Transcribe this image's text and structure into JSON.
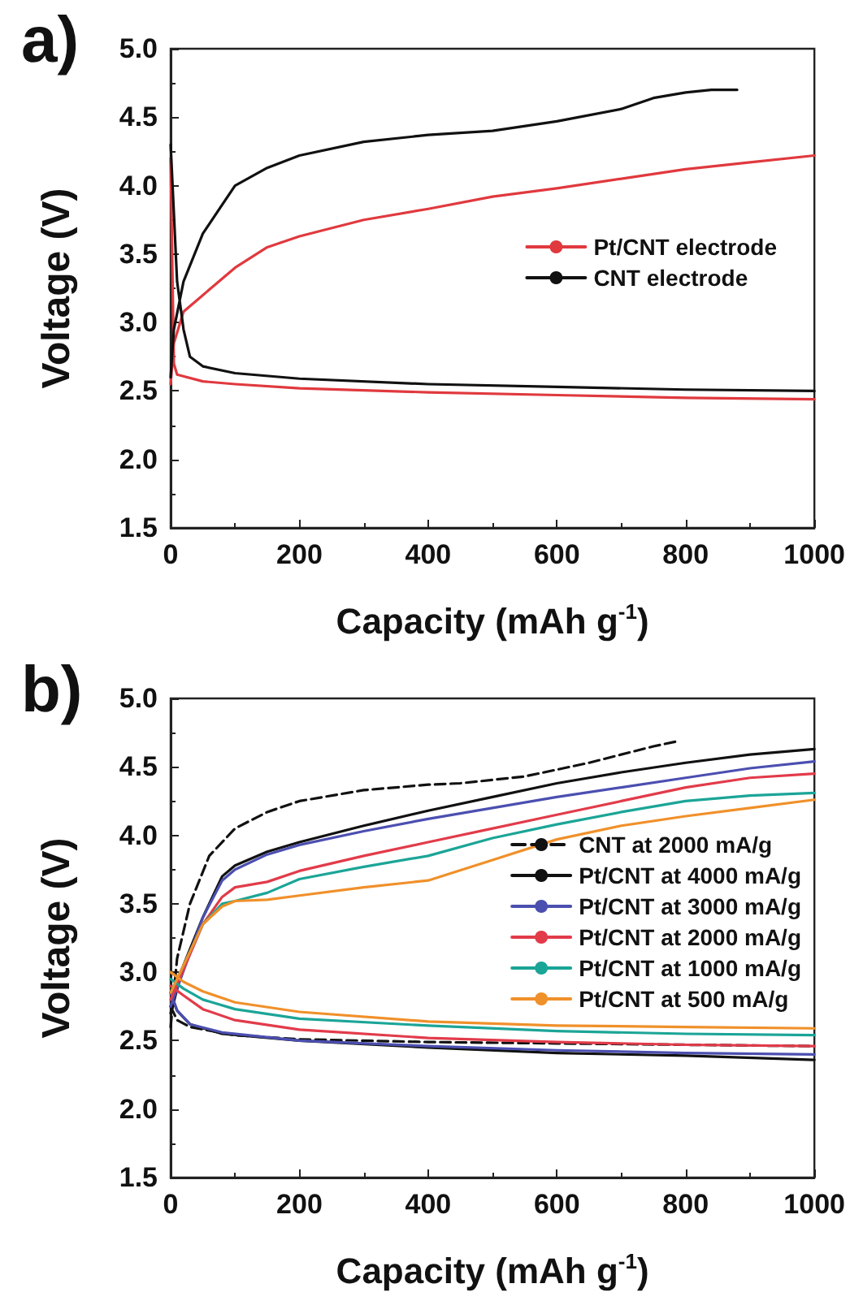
{
  "chart_data": [
    {
      "type": "line",
      "title": "a)",
      "xlabel": "Capacity (mAh g$^{-1}$)",
      "ylabel": "Voltage (V)",
      "xlim": [
        0,
        1000
      ],
      "xticks": [
        0,
        200,
        400,
        600,
        800,
        1000
      ],
      "ylim": [
        1.5,
        5.0
      ],
      "yticks": [
        {
          "value": 1.5,
          "label": "1.5"
        },
        {
          "value": 2,
          "label": "2.0"
        },
        {
          "value": 2.5,
          "label": "2.5"
        },
        {
          "value": 3,
          "label": "3.0"
        },
        {
          "value": 3.5,
          "label": "3.5"
        },
        {
          "value": 4,
          "label": "4.0"
        },
        {
          "value": 4.5,
          "label": "4.5"
        },
        {
          "value": 5,
          "label": "5.0"
        }
      ],
      "grid": false,
      "legend": "right",
      "marker": "none",
      "line_style": "solid",
      "series": [
        {
          "name": "Pt/CNT electrode",
          "color": "#e0393e",
          "x": [
            0,
            3,
            5,
            10,
            50,
            100,
            200,
            400,
            600,
            800,
            1000,
            null,
            0,
            5,
            20,
            50,
            100,
            150,
            200,
            300,
            400,
            500,
            600,
            700,
            800,
            900,
            1000
          ],
          "values": [
            4.2,
            3.3,
            2.7,
            2.62,
            2.57,
            2.55,
            2.52,
            2.49,
            2.47,
            2.45,
            2.44,
            null,
            2.55,
            2.85,
            3.08,
            3.2,
            3.4,
            3.55,
            3.63,
            3.75,
            3.83,
            3.92,
            3.98,
            4.05,
            4.12,
            4.17,
            4.22
          ]
        },
        {
          "name": "CNT electrode",
          "color": "#111111",
          "x": [
            0,
            5,
            10,
            20,
            30,
            50,
            100,
            200,
            400,
            600,
            800,
            1000,
            null,
            0,
            5,
            20,
            50,
            100,
            150,
            200,
            300,
            400,
            500,
            600,
            700,
            750,
            800,
            840,
            880
          ],
          "values": [
            4.3,
            3.8,
            3.3,
            2.95,
            2.75,
            2.68,
            2.63,
            2.59,
            2.55,
            2.53,
            2.51,
            2.5,
            null,
            2.6,
            2.95,
            3.3,
            3.65,
            4.0,
            4.13,
            4.22,
            4.32,
            4.37,
            4.4,
            4.47,
            4.56,
            4.64,
            4.68,
            4.7,
            4.7
          ]
        }
      ]
    },
    {
      "type": "line",
      "title": "b)",
      "xlabel": "Capacity (mAh g$^{-1}$)",
      "ylabel": "Voltage (V)",
      "xlim": [
        0,
        1000
      ],
      "xticks": [
        0,
        200,
        400,
        600,
        800,
        1000
      ],
      "ylim": [
        1.5,
        5.0
      ],
      "yticks": [
        {
          "value": 1.5,
          "label": "1.5"
        },
        {
          "value": 2,
          "label": "2.0"
        },
        {
          "value": 2.5,
          "label": "2.5"
        },
        {
          "value": 3,
          "label": "3.0"
        },
        {
          "value": 3.5,
          "label": "3.5"
        },
        {
          "value": 4,
          "label": "4.0"
        },
        {
          "value": 4.5,
          "label": "4.5"
        },
        {
          "value": 5,
          "label": "5.0"
        }
      ],
      "grid": false,
      "legend": "right",
      "marker": "none",
      "series": [
        {
          "name": "CNT at 2000 mA/g",
          "color": "#111111",
          "line_style": "dashed",
          "x": [
            0,
            10,
            30,
            100,
            200,
            400,
            600,
            800,
            1000,
            null,
            0,
            10,
            30,
            60,
            100,
            150,
            200,
            300,
            400,
            450,
            550,
            650,
            750,
            790
          ],
          "values": [
            2.75,
            2.65,
            2.6,
            2.54,
            2.51,
            2.49,
            2.48,
            2.47,
            2.46,
            null,
            2.6,
            3.1,
            3.5,
            3.85,
            4.05,
            4.17,
            4.25,
            4.33,
            4.37,
            4.38,
            4.43,
            4.53,
            4.65,
            4.69
          ]
        },
        {
          "name": "Pt/CNT at 4000 mA/g",
          "color": "#111111",
          "line_style": "solid",
          "x": [
            0,
            10,
            30,
            80,
            200,
            400,
            600,
            800,
            1000,
            null,
            0,
            20,
            50,
            80,
            100,
            150,
            200,
            300,
            400,
            500,
            600,
            700,
            800,
            900,
            1000
          ],
          "values": [
            2.85,
            2.72,
            2.62,
            2.55,
            2.5,
            2.45,
            2.41,
            2.39,
            2.36,
            null,
            2.7,
            3.05,
            3.4,
            3.7,
            3.78,
            3.88,
            3.95,
            4.07,
            4.18,
            4.28,
            4.38,
            4.46,
            4.53,
            4.59,
            4.63
          ]
        },
        {
          "name": "Pt/CNT at 3000 mA/g",
          "color": "#4b4fb0",
          "line_style": "solid",
          "x": [
            0,
            10,
            30,
            80,
            200,
            400,
            600,
            800,
            1000,
            null,
            0,
            50,
            80,
            100,
            150,
            200,
            300,
            400,
            500,
            600,
            700,
            800,
            900,
            1000
          ],
          "values": [
            2.85,
            2.72,
            2.62,
            2.56,
            2.5,
            2.46,
            2.43,
            2.41,
            2.4,
            null,
            2.75,
            3.4,
            3.67,
            3.75,
            3.86,
            3.93,
            4.03,
            4.12,
            4.2,
            4.28,
            4.35,
            4.42,
            4.49,
            4.54
          ]
        },
        {
          "name": "Pt/CNT at 2000 mA/g",
          "color": "#e23b4a",
          "line_style": "solid",
          "x": [
            0,
            20,
            50,
            100,
            200,
            400,
            600,
            800,
            1000,
            null,
            0,
            50,
            80,
            100,
            150,
            200,
            300,
            400,
            500,
            600,
            700,
            800,
            900,
            1000
          ],
          "values": [
            2.9,
            2.83,
            2.73,
            2.65,
            2.58,
            2.52,
            2.49,
            2.47,
            2.46,
            null,
            2.8,
            3.35,
            3.55,
            3.62,
            3.66,
            3.74,
            3.85,
            3.95,
            4.05,
            4.15,
            4.25,
            4.35,
            4.42,
            4.45
          ]
        },
        {
          "name": "Pt/CNT at 1000 mA/g",
          "color": "#1ba597",
          "line_style": "solid",
          "x": [
            0,
            20,
            50,
            100,
            200,
            400,
            600,
            800,
            1000,
            null,
            0,
            50,
            80,
            100,
            150,
            200,
            300,
            400,
            500,
            600,
            700,
            800,
            900,
            1000
          ],
          "values": [
            2.95,
            2.88,
            2.8,
            2.73,
            2.66,
            2.61,
            2.57,
            2.55,
            2.54,
            null,
            2.85,
            3.35,
            3.5,
            3.52,
            3.58,
            3.68,
            3.77,
            3.85,
            3.98,
            4.08,
            4.17,
            4.25,
            4.29,
            4.31
          ]
        },
        {
          "name": "Pt/CNT at 500 mA/g",
          "color": "#f0902a",
          "line_style": "solid",
          "x": [
            0,
            20,
            50,
            100,
            200,
            400,
            600,
            800,
            1000,
            null,
            0,
            50,
            80,
            100,
            150,
            200,
            300,
            400,
            500,
            600,
            700,
            800,
            900,
            1000
          ],
          "values": [
            3.0,
            2.93,
            2.86,
            2.78,
            2.71,
            2.64,
            2.61,
            2.6,
            2.59,
            null,
            2.85,
            3.35,
            3.48,
            3.52,
            3.53,
            3.56,
            3.62,
            3.67,
            3.82,
            3.97,
            4.07,
            4.14,
            4.2,
            4.26
          ]
        }
      ]
    }
  ]
}
